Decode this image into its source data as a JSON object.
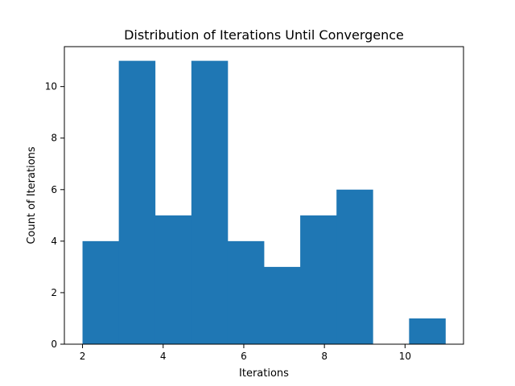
{
  "chart_data": {
    "type": "bar",
    "title": "Distribution of Iterations Until Convergence",
    "xlabel": "Iterations",
    "ylabel": "Count of Iterations",
    "bin_edges": [
      2.0,
      2.9,
      3.8,
      4.7,
      5.6,
      6.5,
      7.4,
      8.3,
      9.2,
      10.1,
      11.0
    ],
    "values": [
      4,
      11,
      5,
      11,
      4,
      3,
      5,
      6,
      0,
      1
    ],
    "xlim": [
      1.55,
      11.45
    ],
    "ylim": [
      0,
      11.55
    ],
    "xticks": [
      2,
      4,
      6,
      8,
      10
    ],
    "yticks": [
      0,
      2,
      4,
      6,
      8,
      10
    ],
    "bar_color": "#1f77b4",
    "grid": false,
    "legend": "none"
  }
}
